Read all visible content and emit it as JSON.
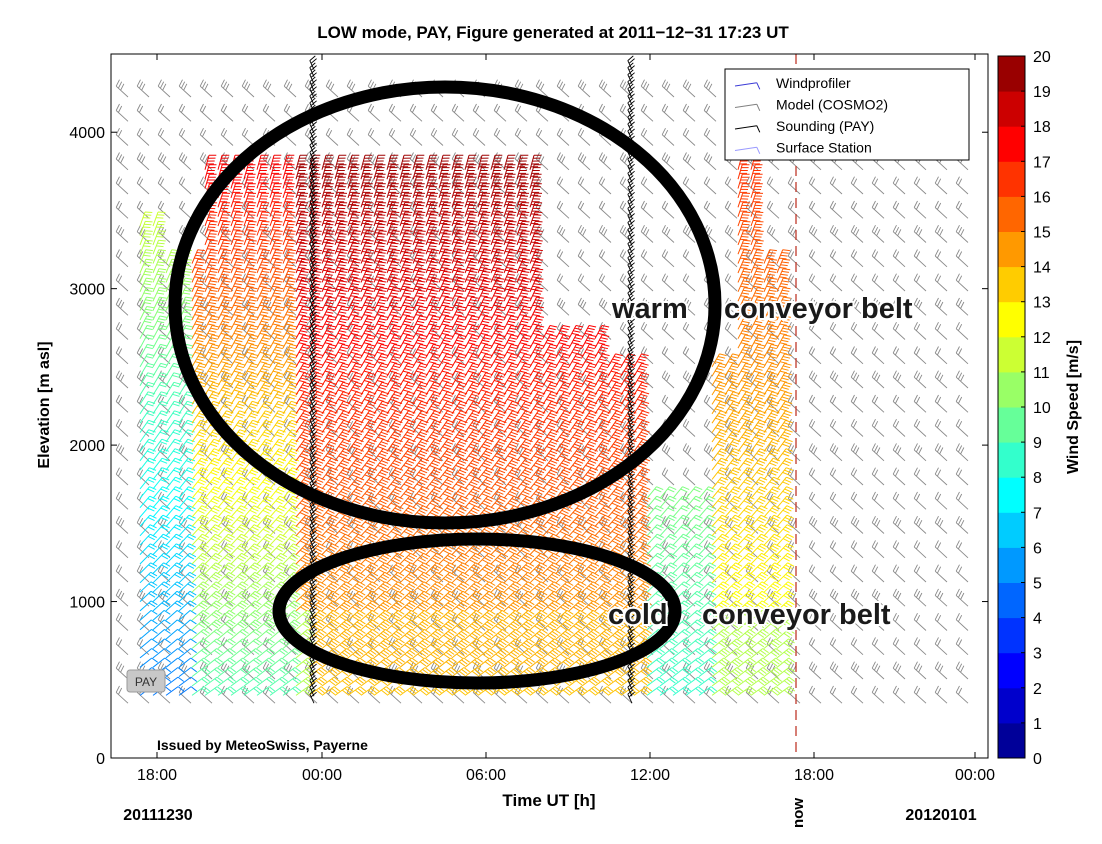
{
  "chart_data": {
    "type": "wind-barb profile",
    "title": "LOW mode, PAY, Figure generated at 2011−12−31 17:23 UT",
    "xlabel": "Time UT [h]",
    "ylabel": "Elevation [m asl]",
    "x_ticks": [
      "18:00",
      "00:00",
      "06:00",
      "12:00",
      "18:00",
      "00:00"
    ],
    "y_ticks": [
      0,
      1000,
      2000,
      3000,
      4000
    ],
    "ylim": [
      0,
      4500
    ],
    "date_left": "20111230",
    "date_right": "20120101",
    "now_label": "now",
    "now_time": "17:23",
    "legend": [
      "Windprofiler",
      "Model (COSMO2)",
      "Sounding (PAY)",
      "Surface Station"
    ],
    "legend_colors": [
      "#3b3bd6",
      "#808080",
      "#000000",
      "#9999ff"
    ],
    "colorbar": {
      "label": "Wind Speed [m/s]",
      "min": 0,
      "max": 20,
      "ticks": [
        0,
        1,
        2,
        3,
        4,
        5,
        6,
        7,
        8,
        9,
        10,
        11,
        12,
        13,
        14,
        15,
        16,
        17,
        18,
        19,
        20
      ]
    },
    "station_tag": "PAY",
    "issuer": "Issued by MeteoSwiss, Payerne",
    "annotations": [
      {
        "text_a": "warm",
        "text_b": "conveyor belt"
      },
      {
        "text_a": "cold",
        "text_b": "conveyor belt"
      }
    ]
  }
}
